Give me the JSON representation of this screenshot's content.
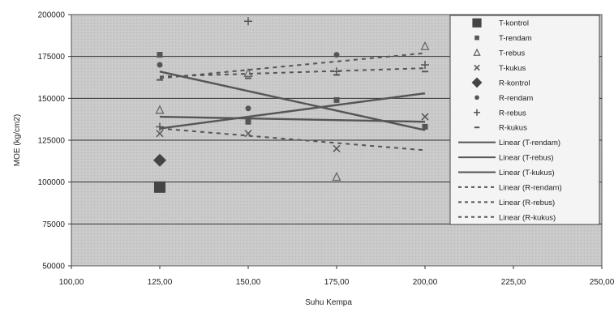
{
  "chart_data": {
    "type": "scatter",
    "title": "",
    "xlabel": "Suhu Kempa",
    "ylabel": "MOE (kg/cm2)",
    "xlim": [
      100,
      250
    ],
    "ylim": [
      50000,
      200000
    ],
    "x_ticks": [
      100,
      125,
      150,
      175,
      200,
      225,
      250
    ],
    "x_tick_labels": [
      "100,00",
      "125,00",
      "150,00",
      "175,00",
      "200,00",
      "225,00",
      "250,00"
    ],
    "y_ticks": [
      50000,
      75000,
      100000,
      125000,
      150000,
      175000,
      200000
    ],
    "y_tick_labels": [
      "50000",
      "75000",
      "100000",
      "125000",
      "150000",
      "175000",
      "200000"
    ],
    "grid": "horizontal",
    "legend_position": "right",
    "background_color": "#c9c9c9",
    "series": [
      {
        "name": "T-kontrol",
        "marker": "square-large",
        "color": "#444444",
        "points": [
          [
            125,
            97000
          ]
        ]
      },
      {
        "name": "T-rendam",
        "marker": "square",
        "color": "#555555",
        "points": [
          [
            125,
            176000
          ],
          [
            150,
            136000
          ],
          [
            175,
            149000
          ],
          [
            200,
            133000
          ]
        ]
      },
      {
        "name": "T-rebus",
        "marker": "triangle",
        "color": "#666666",
        "points": [
          [
            125,
            143000
          ],
          [
            150,
            165000
          ],
          [
            175,
            103000
          ],
          [
            200,
            181000
          ]
        ]
      },
      {
        "name": "T-kukus",
        "marker": "x",
        "color": "#555555",
        "points": [
          [
            125,
            129000
          ],
          [
            150,
            129000
          ],
          [
            175,
            120000
          ],
          [
            200,
            139000
          ]
        ]
      },
      {
        "name": "R-kontrol",
        "marker": "diamond",
        "color": "#444444",
        "points": [
          [
            125,
            113000
          ]
        ]
      },
      {
        "name": "R-rendam",
        "marker": "circle",
        "color": "#555555",
        "points": [
          [
            125,
            170000
          ],
          [
            150,
            144000
          ],
          [
            175,
            176000
          ],
          [
            200,
            133000
          ]
        ]
      },
      {
        "name": "R-rebus",
        "marker": "plus",
        "color": "#555555",
        "points": [
          [
            125,
            133000
          ],
          [
            150,
            196000
          ],
          [
            175,
            166000
          ],
          [
            200,
            170000
          ]
        ]
      },
      {
        "name": "R-kukus",
        "marker": "dash",
        "color": "#555555",
        "points": [
          [
            125,
            161000
          ],
          [
            150,
            162000
          ],
          [
            175,
            164000
          ],
          [
            200,
            166000
          ]
        ]
      }
    ],
    "trendlines": [
      {
        "name": "Linear (T-rendam)",
        "style": "solid",
        "color": "#555555",
        "from": [
          125,
          166000
        ],
        "to": [
          200,
          131000
        ]
      },
      {
        "name": "Linear (T-rebus)",
        "style": "solid",
        "color": "#555555",
        "from": [
          125,
          132000
        ],
        "to": [
          200,
          153000
        ]
      },
      {
        "name": "Linear (T-kukus)",
        "style": "solid",
        "color": "#555555",
        "from": [
          125,
          139000
        ],
        "to": [
          200,
          136000
        ]
      },
      {
        "name": "Linear (R-rendam)",
        "style": "dashed",
        "color": "#555555",
        "from": [
          125,
          162000
        ],
        "to": [
          200,
          177000
        ]
      },
      {
        "name": "Linear (R-rebus)",
        "style": "dashed",
        "color": "#555555",
        "from": [
          125,
          163000
        ],
        "to": [
          200,
          168000
        ]
      },
      {
        "name": "Linear (R-kukus)",
        "style": "dashed",
        "color": "#555555",
        "from": [
          125,
          132000
        ],
        "to": [
          200,
          119000
        ]
      }
    ],
    "legend": [
      "T-kontrol",
      "T-rendam",
      "T-rebus",
      "T-kukus",
      "R-kontrol",
      "R-rendam",
      "R-rebus",
      "R-kukus",
      "Linear (T-rendam)",
      "Linear (T-rebus)",
      "Linear (T-kukus)",
      "Linear (R-rendam)",
      "Linear (R-rebus)",
      "Linear (R-kukus)"
    ]
  }
}
